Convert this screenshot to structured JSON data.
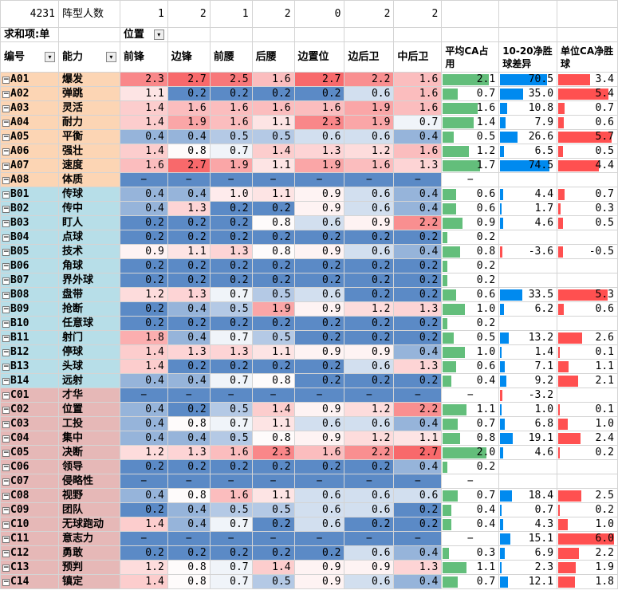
{
  "top": {
    "label": "4231",
    "title": "阵型人数",
    "counts": [
      "1",
      "2",
      "1",
      "2",
      "0",
      "2",
      "2"
    ]
  },
  "row2": {
    "sum_label": "求和项:单",
    "pos_label": "位置"
  },
  "headers": {
    "id": "编号",
    "ability": "能力",
    "positions": [
      "前锋",
      "边锋",
      "前腰",
      "后腰",
      "边置位",
      "边后卫",
      "中后卫"
    ],
    "avg": "平均CA占用",
    "net": "10-20净胜球差异",
    "unit": "单位CA净胜球"
  },
  "colors": {
    "green": "#63be7b",
    "blue": "#008aef",
    "red": "#ff5050",
    "group_a": "#fcd5b4",
    "group_b": "#b7dee8",
    "group_c": "#e6b8b7",
    "empty_row": "#5b8ac6"
  },
  "rows": [
    {
      "id": "A01",
      "name": "爆发",
      "v": [
        2.3,
        2.7,
        2.5,
        1.6,
        2.7,
        2.2,
        1.6
      ],
      "avg": 2.1,
      "net": 70.5,
      "unit": 3.4
    },
    {
      "id": "A02",
      "name": "弹跳",
      "v": [
        1.1,
        0.2,
        0.2,
        0.2,
        0.2,
        0.6,
        1.6
      ],
      "avg": 0.7,
      "net": 35.0,
      "unit": 5.4
    },
    {
      "id": "A03",
      "name": "灵活",
      "v": [
        1.4,
        1.6,
        1.6,
        1.6,
        1.6,
        1.9,
        1.6
      ],
      "avg": 1.6,
      "net": 10.8,
      "unit": 0.7
    },
    {
      "id": "A04",
      "name": "耐力",
      "v": [
        1.4,
        1.9,
        1.6,
        1.1,
        2.3,
        1.9,
        0.7
      ],
      "avg": 1.4,
      "net": 7.9,
      "unit": 0.6
    },
    {
      "id": "A05",
      "name": "平衡",
      "v": [
        0.4,
        0.4,
        0.5,
        0.5,
        0.6,
        0.6,
        0.4
      ],
      "avg": 0.5,
      "net": 26.6,
      "unit": 5.7
    },
    {
      "id": "A06",
      "name": "强壮",
      "v": [
        1.4,
        0.8,
        0.7,
        1.4,
        1.3,
        1.2,
        1.6
      ],
      "avg": 1.2,
      "net": 6.5,
      "unit": 0.5
    },
    {
      "id": "A07",
      "name": "速度",
      "v": [
        1.6,
        2.7,
        1.9,
        1.1,
        1.9,
        1.6,
        1.3
      ],
      "avg": 1.7,
      "net": 74.5,
      "unit": 4.4
    },
    {
      "id": "A08",
      "name": "体质",
      "empty": true
    },
    {
      "id": "B01",
      "name": "传球",
      "v": [
        0.4,
        0.4,
        1.0,
        1.1,
        0.9,
        0.6,
        0.4
      ],
      "avg": 0.6,
      "net": 4.4,
      "unit": 0.7
    },
    {
      "id": "B02",
      "name": "传中",
      "v": [
        0.4,
        1.3,
        0.2,
        0.2,
        0.9,
        0.6,
        0.4
      ],
      "avg": 0.6,
      "net": 1.7,
      "unit": 0.3
    },
    {
      "id": "B03",
      "name": "盯人",
      "v": [
        0.2,
        0.2,
        0.2,
        0.8,
        0.6,
        0.9,
        2.2
      ],
      "avg": 0.9,
      "net": 4.6,
      "unit": 0.5
    },
    {
      "id": "B04",
      "name": "点球",
      "v": [
        0.2,
        0.2,
        0.2,
        0.2,
        0.2,
        0.2,
        0.2
      ],
      "avg": 0.2,
      "net": null,
      "unit": null
    },
    {
      "id": "B05",
      "name": "技术",
      "v": [
        0.9,
        1.1,
        1.3,
        0.8,
        0.9,
        0.6,
        0.4
      ],
      "avg": 0.8,
      "net": -3.6,
      "unit": -0.5
    },
    {
      "id": "B06",
      "name": "角球",
      "v": [
        0.2,
        0.2,
        0.2,
        0.2,
        0.2,
        0.2,
        0.2
      ],
      "avg": 0.2,
      "net": null,
      "unit": null
    },
    {
      "id": "B07",
      "name": "界外球",
      "v": [
        0.2,
        0.2,
        0.2,
        0.2,
        0.2,
        0.2,
        0.2
      ],
      "avg": 0.2,
      "net": null,
      "unit": null
    },
    {
      "id": "B08",
      "name": "盘带",
      "v": [
        1.2,
        1.3,
        0.7,
        0.5,
        0.6,
        0.2,
        0.2
      ],
      "avg": 0.6,
      "net": 33.5,
      "unit": 5.3
    },
    {
      "id": "B09",
      "name": "抢断",
      "v": [
        0.2,
        0.4,
        0.5,
        1.9,
        0.9,
        1.2,
        1.3
      ],
      "avg": 1.0,
      "net": 6.2,
      "unit": 0.6
    },
    {
      "id": "B10",
      "name": "任意球",
      "v": [
        0.2,
        0.2,
        0.2,
        0.2,
        0.2,
        0.2,
        0.2
      ],
      "avg": 0.2,
      "net": null,
      "unit": null
    },
    {
      "id": "B11",
      "name": "射门",
      "v": [
        1.8,
        0.4,
        0.7,
        0.5,
        0.2,
        0.2,
        0.2
      ],
      "avg": 0.5,
      "net": 13.2,
      "unit": 2.6
    },
    {
      "id": "B12",
      "name": "停球",
      "v": [
        1.4,
        1.3,
        1.3,
        1.1,
        0.9,
        0.9,
        0.4
      ],
      "avg": 1.0,
      "net": 1.4,
      "unit": 0.1
    },
    {
      "id": "B13",
      "name": "头球",
      "v": [
        1.4,
        0.2,
        0.2,
        0.2,
        0.2,
        0.6,
        1.3
      ],
      "avg": 0.6,
      "net": 7.1,
      "unit": 1.1
    },
    {
      "id": "B14",
      "name": "远射",
      "v": [
        0.4,
        0.4,
        0.7,
        0.8,
        0.2,
        0.2,
        0.2
      ],
      "avg": 0.4,
      "net": 9.2,
      "unit": 2.1
    },
    {
      "id": "C01",
      "name": "才华",
      "empty": true,
      "net": -3.2
    },
    {
      "id": "C02",
      "name": "位置",
      "v": [
        0.4,
        0.2,
        0.5,
        1.4,
        0.9,
        1.2,
        2.2
      ],
      "avg": 1.1,
      "net": 1.0,
      "unit": 0.1
    },
    {
      "id": "C03",
      "name": "工投",
      "v": [
        0.4,
        0.8,
        0.7,
        1.1,
        0.6,
        0.6,
        0.4
      ],
      "avg": 0.7,
      "net": 6.8,
      "unit": 1.0
    },
    {
      "id": "C04",
      "name": "集中",
      "v": [
        0.4,
        0.4,
        0.5,
        0.8,
        0.9,
        1.2,
        1.1
      ],
      "avg": 0.8,
      "net": 19.1,
      "unit": 2.4
    },
    {
      "id": "C05",
      "name": "决断",
      "v": [
        1.2,
        1.3,
        1.6,
        2.3,
        1.6,
        2.2,
        2.7
      ],
      "avg": 2.0,
      "net": 4.6,
      "unit": 0.2
    },
    {
      "id": "C06",
      "name": "领导",
      "v": [
        0.2,
        0.2,
        0.2,
        0.2,
        0.2,
        0.2,
        0.4
      ],
      "avg": 0.2,
      "net": null,
      "unit": null
    },
    {
      "id": "C07",
      "name": "侵略性",
      "empty": true
    },
    {
      "id": "C08",
      "name": "视野",
      "v": [
        0.4,
        0.8,
        1.6,
        1.1,
        0.6,
        0.6,
        0.6
      ],
      "avg": 0.7,
      "net": 18.4,
      "unit": 2.5
    },
    {
      "id": "C09",
      "name": "团队",
      "v": [
        0.2,
        0.4,
        0.5,
        0.5,
        0.6,
        0.6,
        0.2
      ],
      "avg": 0.4,
      "net": 0.7,
      "unit": 0.2
    },
    {
      "id": "C10",
      "name": "无球跑动",
      "v": [
        1.4,
        0.4,
        0.7,
        0.2,
        0.6,
        0.2,
        0.2
      ],
      "avg": 0.4,
      "net": 4.3,
      "unit": 1.0
    },
    {
      "id": "C11",
      "name": "意志力",
      "empty": true,
      "net": 15.1,
      "unit": 6.0
    },
    {
      "id": "C12",
      "name": "勇敢",
      "v": [
        0.2,
        0.2,
        0.2,
        0.2,
        0.2,
        0.6,
        0.4
      ],
      "avg": 0.3,
      "net": 6.9,
      "unit": 2.2
    },
    {
      "id": "C13",
      "name": "预判",
      "v": [
        1.2,
        0.8,
        0.7,
        1.4,
        0.9,
        0.9,
        1.3
      ],
      "avg": 1.1,
      "net": 2.3,
      "unit": 1.9
    },
    {
      "id": "C14",
      "name": "镇定",
      "v": [
        1.4,
        0.8,
        0.7,
        0.5,
        0.9,
        0.6,
        0.4
      ],
      "avg": 0.7,
      "net": 12.1,
      "unit": 1.8
    }
  ]
}
